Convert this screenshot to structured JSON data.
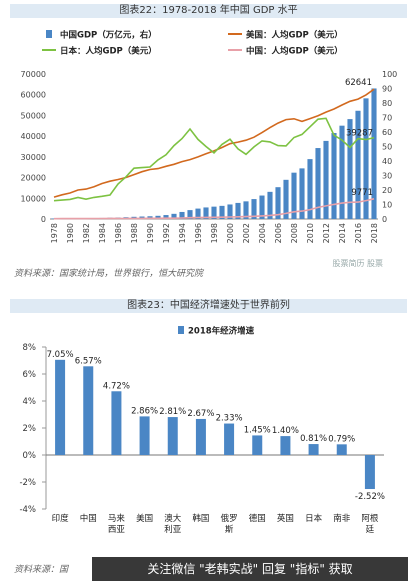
{
  "chart_data": [
    {
      "type": "bar+line",
      "title": "图表22：1978-2018 年中国 GDP 水平",
      "legend": [
        {
          "label": "中国GDP（万亿元，右）",
          "color": "#4a86c5",
          "kind": "bar"
        },
        {
          "label": "美国：人均GDP（美元）",
          "color": "#d2691e",
          "kind": "line"
        },
        {
          "label": "日本：人均GDP（美元）",
          "color": "#7dc242",
          "kind": "line"
        },
        {
          "label": "中国：人均GDP（美元）",
          "color": "#e8a0a8",
          "kind": "line"
        }
      ],
      "years": [
        1978,
        1979,
        1980,
        1981,
        1982,
        1983,
        1984,
        1985,
        1986,
        1987,
        1988,
        1989,
        1990,
        1991,
        1992,
        1993,
        1994,
        1995,
        1996,
        1997,
        1998,
        1999,
        2000,
        2001,
        2002,
        2003,
        2004,
        2005,
        2006,
        2007,
        2008,
        2009,
        2010,
        2011,
        2012,
        2013,
        2014,
        2015,
        2016,
        2017,
        2018
      ],
      "x_ticks": [
        "1978",
        "1980",
        "1982",
        "1984",
        "1986",
        "1988",
        "1990",
        "1992",
        "1994",
        "1996",
        "1998",
        "2000",
        "2002",
        "2004",
        "2006",
        "2008",
        "2010",
        "2012",
        "2014",
        "2016",
        "2018"
      ],
      "left_axis": {
        "ylim": [
          0,
          70000
        ],
        "ticks": [
          "0",
          "10000",
          "20000",
          "30000",
          "40000",
          "50000",
          "60000",
          "70000"
        ]
      },
      "right_axis": {
        "ylim": [
          0,
          100
        ],
        "ticks": [
          "0",
          "10",
          "20",
          "30",
          "40",
          "50",
          "60",
          "70",
          "80",
          "90",
          "100"
        ]
      },
      "series": [
        {
          "name": "中国GDP（万亿元，右）",
          "axis": "right",
          "values": [
            0.37,
            0.41,
            0.46,
            0.49,
            0.54,
            0.6,
            0.73,
            0.91,
            1.04,
            1.22,
            1.51,
            1.71,
            1.89,
            2.2,
            2.72,
            3.57,
            4.86,
            6.13,
            7.18,
            7.97,
            8.52,
            9.06,
            10.03,
            11.09,
            12.17,
            13.74,
            16.18,
            18.73,
            21.94,
            27.02,
            31.95,
            34.91,
            41.3,
            48.93,
            53.86,
            59.3,
            64.36,
            68.89,
            74.64,
            83.2,
            90.03
          ]
        },
        {
          "name": "美国：人均GDP（美元）",
          "axis": "left",
          "values": [
            10565,
            11674,
            12575,
            13976,
            14434,
            15544,
            17121,
            18237,
            19071,
            20039,
            21417,
            22857,
            23889,
            24342,
            25419,
            26387,
            27695,
            28691,
            29968,
            31459,
            32854,
            34513,
            36335,
            37133,
            38023,
            39496,
            41713,
            44115,
            46299,
            47976,
            48383,
            47100,
            48467,
            49883,
            51603,
            53107,
            55033,
            56803,
            57904,
            59928,
            62641
          ]
        },
        {
          "name": "日本：人均GDP（美元）",
          "axis": "left",
          "values": [
            8821,
            9105,
            9465,
            10361,
            9578,
            10425,
            10979,
            11577,
            16882,
            20356,
            24525,
            24813,
            25124,
            28541,
            31014,
            35451,
            38815,
            43440,
            38437,
            35022,
            31903,
            36027,
            38532,
            33846,
            31236,
            34808,
            37689,
            37218,
            35434,
            35275,
            39339,
            40855,
            44507,
            48168,
            48603,
            40454,
            38109,
            34524,
            38794,
            38331,
            39287
          ]
        },
        {
          "name": "中国：人均GDP（美元）",
          "axis": "left",
          "values": [
            156,
            184,
            195,
            197,
            203,
            225,
            251,
            294,
            282,
            252,
            284,
            311,
            318,
            333,
            367,
            377,
            473,
            610,
            709,
            782,
            829,
            873,
            959,
            1053,
            1149,
            1289,
            1509,
            1753,
            2099,
            2694,
            3468,
            3832,
            4550,
            5618,
            6317,
            7051,
            7679,
            8067,
            8148,
            8879,
            9771
          ]
        }
      ],
      "annotations": [
        "62641",
        "39287",
        "9771"
      ]
    },
    {
      "type": "bar",
      "title": "图表23：中国经济增速处于世界前列",
      "legend": [
        {
          "label": "2018年经济增速",
          "color": "#4a86c5"
        }
      ],
      "categories": [
        [
          "印度"
        ],
        [
          "中国"
        ],
        [
          "马来",
          "西亚"
        ],
        [
          "美国"
        ],
        [
          "澳大",
          "利亚"
        ],
        [
          "韩国"
        ],
        [
          "俄罗",
          "斯"
        ],
        [
          "德国"
        ],
        [
          "英国"
        ],
        [
          "日本"
        ],
        [
          "南非"
        ],
        [
          "阿根",
          "廷"
        ]
      ],
      "values": [
        7.05,
        6.57,
        4.72,
        2.86,
        2.81,
        2.67,
        2.33,
        1.45,
        1.4,
        0.81,
        0.79,
        -2.52
      ],
      "data_labels": [
        "7.05%",
        "6.57%",
        "4.72%",
        "2.86%",
        "2.81%",
        "2.67%",
        "2.33%",
        "1.45%",
        "1.40%",
        "0.81%",
        "0.79%",
        "-2.52%"
      ],
      "ylim": [
        -4,
        8
      ],
      "y_ticks": [
        "-4%",
        "-2%",
        "0%",
        "2%",
        "4%",
        "6%",
        "8%"
      ]
    }
  ],
  "sources": {
    "top": "资料来源：国家统计局，世界银行，恒大研究院",
    "bottom": "资料来源：国"
  },
  "watermark_top": "股票简历 股票",
  "banner": "关注微信 \"老韩实战\" 回复 \"指标\" 获取"
}
